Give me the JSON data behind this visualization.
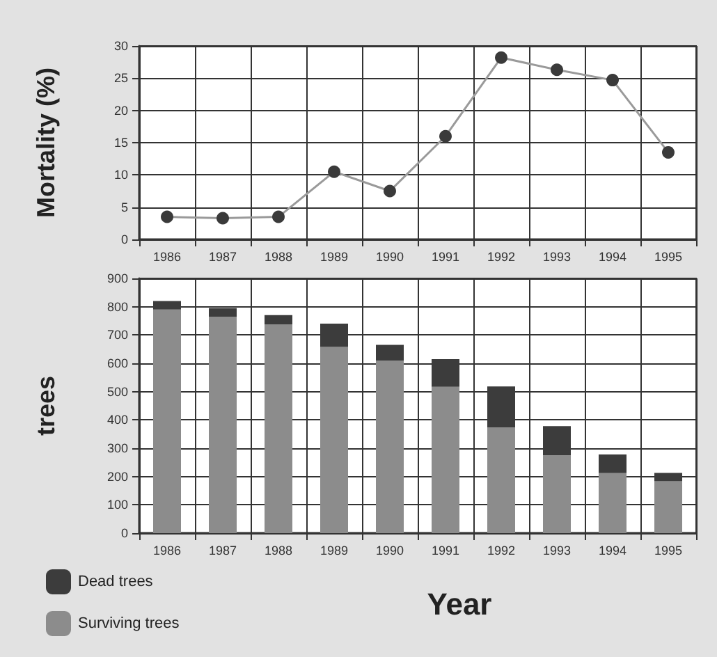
{
  "chart_data": [
    {
      "type": "line",
      "ylabel": "Mortality (%)",
      "categories": [
        "1986",
        "1987",
        "1988",
        "1989",
        "1990",
        "1991",
        "1992",
        "1993",
        "1994",
        "1995"
      ],
      "series": [
        {
          "color": "#3a3a3a",
          "values": [
            3.5,
            3.3,
            3.5,
            10.5,
            7.5,
            16,
            28.2,
            26.3,
            24.7,
            13.5
          ]
        }
      ],
      "ylim": [
        0,
        30
      ],
      "yticks": [
        0,
        5,
        10,
        15,
        20,
        25,
        30
      ],
      "grid": true,
      "marker": "circle",
      "line_style": "solid"
    },
    {
      "type": "bar",
      "stacked": true,
      "xlabel": "Year",
      "ylabel": "trees",
      "categories": [
        "1986",
        "1987",
        "1988",
        "1989",
        "1990",
        "1991",
        "1992",
        "1993",
        "1994",
        "1995"
      ],
      "series": [
        {
          "name": "Surviving trees",
          "color": "#8c8c8c",
          "values": [
            790,
            765,
            738,
            658,
            610,
            517,
            373,
            275,
            212,
            183
          ]
        },
        {
          "name": "Dead trees",
          "color": "#3c3c3c",
          "values": [
            30,
            30,
            32,
            82,
            55,
            98,
            145,
            103,
            66,
            30
          ]
        }
      ],
      "ylim": [
        0,
        900
      ],
      "yticks": [
        0,
        100,
        200,
        300,
        400,
        500,
        600,
        700,
        800,
        900
      ],
      "grid": true,
      "legend": "bottom left"
    }
  ]
}
